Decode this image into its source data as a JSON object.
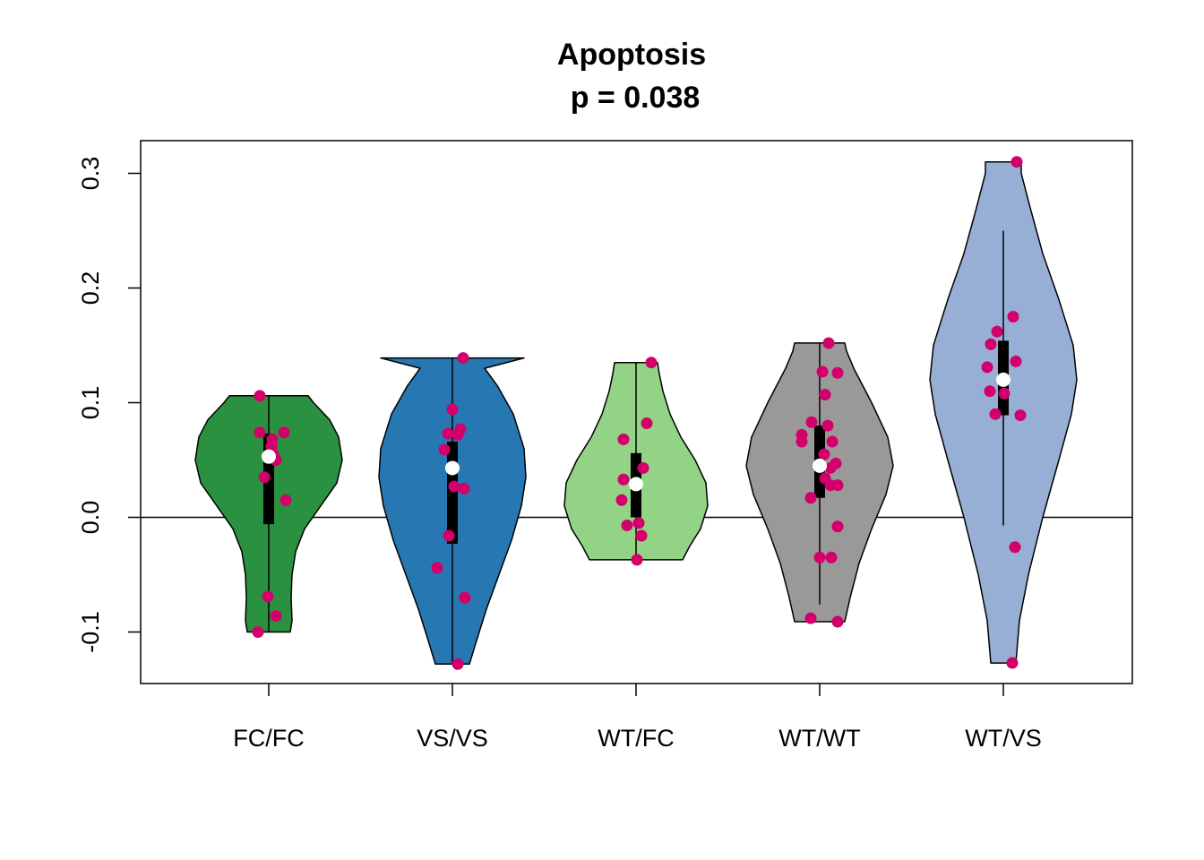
{
  "chart_data": {
    "type": "violin",
    "title": "Apoptosis",
    "subtitle": "p = 0.038",
    "xlabel": "",
    "ylabel": "",
    "ylim": [
      -0.145,
      0.33
    ],
    "yticks": [
      -0.1,
      0.0,
      0.1,
      0.2,
      0.3
    ],
    "ytick_labels": [
      "-0.1",
      "0.0",
      "0.1",
      "0.2",
      "0.3"
    ],
    "reference_line": 0.0,
    "grid": false,
    "point_color": "#D3006B",
    "median_color": "#FFFFFF",
    "categories": [
      "FC/FC",
      "VS/VS",
      "WT/FC",
      "WT/WT",
      "WT/VS"
    ],
    "groups": [
      {
        "label": "FC/FC",
        "color": "#2A9140",
        "range": [
          -0.1,
          0.106
        ],
        "whisker": [
          -0.1,
          0.106
        ],
        "box": [
          -0.006,
          0.073
        ],
        "median": 0.053,
        "density": [
          [
            -0.1,
            0.24
          ],
          [
            -0.09,
            0.26
          ],
          [
            -0.07,
            0.25
          ],
          [
            -0.05,
            0.26
          ],
          [
            -0.03,
            0.3
          ],
          [
            -0.01,
            0.4
          ],
          [
            0.01,
            0.58
          ],
          [
            0.03,
            0.76
          ],
          [
            0.05,
            0.82
          ],
          [
            0.07,
            0.78
          ],
          [
            0.085,
            0.68
          ],
          [
            0.1,
            0.5
          ],
          [
            0.106,
            0.44
          ]
        ],
        "points": [
          {
            "jitter": -0.1,
            "y": 0.106
          },
          {
            "jitter": -0.1,
            "y": 0.074
          },
          {
            "jitter": 0.17,
            "y": 0.074
          },
          {
            "jitter": 0.04,
            "y": 0.068
          },
          {
            "jitter": 0.03,
            "y": 0.062
          },
          {
            "jitter": 0.05,
            "y": 0.055
          },
          {
            "jitter": 0.08,
            "y": 0.05
          },
          {
            "jitter": -0.05,
            "y": 0.035
          },
          {
            "jitter": 0.19,
            "y": 0.015
          },
          {
            "jitter": -0.01,
            "y": -0.069
          },
          {
            "jitter": 0.08,
            "y": -0.086
          },
          {
            "jitter": -0.12,
            "y": -0.1
          }
        ]
      },
      {
        "label": "VS/VS",
        "color": "#2677B2",
        "range": [
          -0.128,
          0.139
        ],
        "whisker": [
          -0.128,
          0.139
        ],
        "box": [
          -0.023,
          0.066
        ],
        "median": 0.043,
        "density": [
          [
            -0.128,
            0.19
          ],
          [
            -0.11,
            0.26
          ],
          [
            -0.08,
            0.38
          ],
          [
            -0.05,
            0.52
          ],
          [
            -0.02,
            0.66
          ],
          [
            0.01,
            0.77
          ],
          [
            0.035,
            0.82
          ],
          [
            0.06,
            0.8
          ],
          [
            0.09,
            0.68
          ],
          [
            0.115,
            0.5
          ],
          [
            0.13,
            0.36
          ],
          [
            0.139,
            0.8
          ]
        ],
        "points": [
          {
            "jitter": 0.12,
            "y": 0.139
          },
          {
            "jitter": 0.0,
            "y": 0.094
          },
          {
            "jitter": 0.09,
            "y": 0.077
          },
          {
            "jitter": -0.05,
            "y": 0.073
          },
          {
            "jitter": 0.06,
            "y": 0.072
          },
          {
            "jitter": -0.09,
            "y": 0.059
          },
          {
            "jitter": 0.02,
            "y": 0.027
          },
          {
            "jitter": 0.13,
            "y": 0.025
          },
          {
            "jitter": -0.04,
            "y": -0.016
          },
          {
            "jitter": -0.17,
            "y": -0.044
          },
          {
            "jitter": 0.14,
            "y": -0.07
          },
          {
            "jitter": 0.06,
            "y": -0.128
          }
        ]
      },
      {
        "label": "WT/FC",
        "color": "#92D386",
        "range": [
          -0.037,
          0.135
        ],
        "whisker": [
          -0.037,
          0.135
        ],
        "box": [
          0.0,
          0.056
        ],
        "median": 0.029,
        "density": [
          [
            -0.037,
            0.52
          ],
          [
            -0.025,
            0.6
          ],
          [
            -0.01,
            0.72
          ],
          [
            0.01,
            0.8
          ],
          [
            0.03,
            0.78
          ],
          [
            0.05,
            0.66
          ],
          [
            0.07,
            0.5
          ],
          [
            0.09,
            0.38
          ],
          [
            0.11,
            0.3
          ],
          [
            0.125,
            0.26
          ],
          [
            0.135,
            0.24
          ]
        ],
        "points": [
          {
            "jitter": 0.17,
            "y": 0.135
          },
          {
            "jitter": 0.12,
            "y": 0.082
          },
          {
            "jitter": -0.14,
            "y": 0.068
          },
          {
            "jitter": 0.08,
            "y": 0.043
          },
          {
            "jitter": -0.14,
            "y": 0.033
          },
          {
            "jitter": 0.0,
            "y": 0.029
          },
          {
            "jitter": -0.16,
            "y": 0.015
          },
          {
            "jitter": 0.03,
            "y": -0.005
          },
          {
            "jitter": -0.1,
            "y": -0.007
          },
          {
            "jitter": 0.06,
            "y": -0.016
          },
          {
            "jitter": 0.01,
            "y": -0.037
          }
        ]
      },
      {
        "label": "WT/WT",
        "color": "#999999",
        "range": [
          -0.091,
          0.152
        ],
        "whisker": [
          -0.076,
          0.152
        ],
        "box": [
          0.017,
          0.08
        ],
        "median": 0.045,
        "density": [
          [
            -0.091,
            0.28
          ],
          [
            -0.07,
            0.34
          ],
          [
            -0.04,
            0.44
          ],
          [
            -0.01,
            0.58
          ],
          [
            0.02,
            0.74
          ],
          [
            0.045,
            0.82
          ],
          [
            0.07,
            0.76
          ],
          [
            0.1,
            0.58
          ],
          [
            0.13,
            0.38
          ],
          [
            0.145,
            0.3
          ],
          [
            0.152,
            0.28
          ]
        ],
        "points": [
          {
            "jitter": 0.1,
            "y": 0.152
          },
          {
            "jitter": 0.03,
            "y": 0.127
          },
          {
            "jitter": 0.2,
            "y": 0.126
          },
          {
            "jitter": 0.06,
            "y": 0.107
          },
          {
            "jitter": -0.09,
            "y": 0.083
          },
          {
            "jitter": 0.09,
            "y": 0.08
          },
          {
            "jitter": -0.2,
            "y": 0.072
          },
          {
            "jitter": -0.2,
            "y": 0.066
          },
          {
            "jitter": 0.14,
            "y": 0.066
          },
          {
            "jitter": 0.05,
            "y": 0.055
          },
          {
            "jitter": 0.18,
            "y": 0.047
          },
          {
            "jitter": 0.12,
            "y": 0.043
          },
          {
            "jitter": 0.06,
            "y": 0.034
          },
          {
            "jitter": 0.12,
            "y": 0.028
          },
          {
            "jitter": 0.2,
            "y": 0.028
          },
          {
            "jitter": -0.1,
            "y": 0.017
          },
          {
            "jitter": 0.2,
            "y": -0.008
          },
          {
            "jitter": 0.0,
            "y": -0.035
          },
          {
            "jitter": 0.13,
            "y": -0.035
          },
          {
            "jitter": -0.1,
            "y": -0.088
          },
          {
            "jitter": 0.2,
            "y": -0.091
          }
        ]
      },
      {
        "label": "WT/VS",
        "color": "#97AFD5",
        "range": [
          -0.127,
          0.31
        ],
        "whisker": [
          -0.007,
          0.25
        ],
        "box": [
          0.089,
          0.154
        ],
        "median": 0.12,
        "density": [
          [
            -0.127,
            0.14
          ],
          [
            -0.09,
            0.18
          ],
          [
            -0.05,
            0.28
          ],
          [
            0.0,
            0.44
          ],
          [
            0.05,
            0.62
          ],
          [
            0.09,
            0.76
          ],
          [
            0.12,
            0.82
          ],
          [
            0.15,
            0.78
          ],
          [
            0.19,
            0.62
          ],
          [
            0.23,
            0.44
          ],
          [
            0.27,
            0.3
          ],
          [
            0.3,
            0.2
          ],
          [
            0.31,
            0.2
          ]
        ],
        "points": [
          {
            "jitter": 0.15,
            "y": 0.31
          },
          {
            "jitter": 0.11,
            "y": 0.175
          },
          {
            "jitter": -0.07,
            "y": 0.162
          },
          {
            "jitter": -0.14,
            "y": 0.151
          },
          {
            "jitter": 0.14,
            "y": 0.136
          },
          {
            "jitter": -0.18,
            "y": 0.131
          },
          {
            "jitter": 0.0,
            "y": 0.12
          },
          {
            "jitter": -0.15,
            "y": 0.11
          },
          {
            "jitter": 0.01,
            "y": 0.108
          },
          {
            "jitter": -0.09,
            "y": 0.09
          },
          {
            "jitter": 0.19,
            "y": 0.089
          },
          {
            "jitter": 0.13,
            "y": -0.026
          },
          {
            "jitter": 0.1,
            "y": -0.127
          }
        ]
      }
    ]
  }
}
